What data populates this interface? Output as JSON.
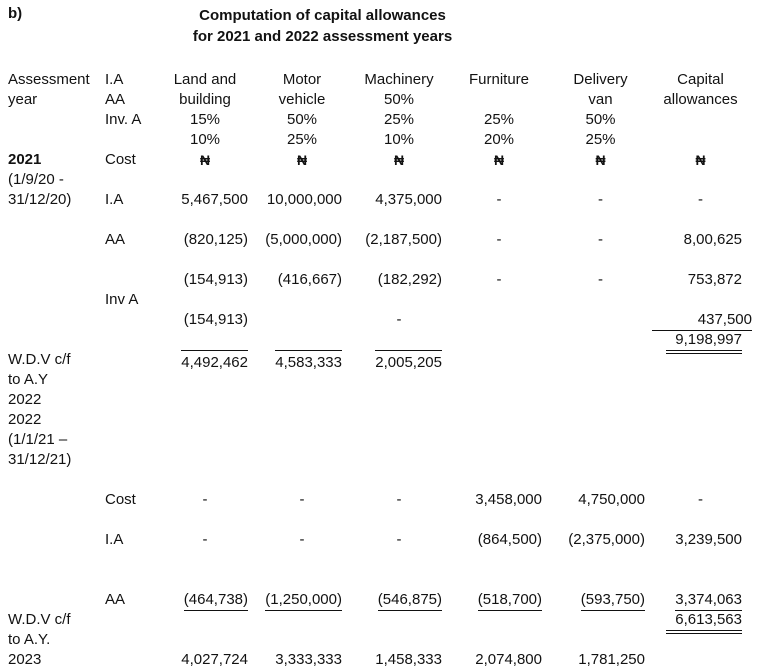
{
  "doc": {
    "item_label": "b)",
    "title": [
      "Computation of capital allowances",
      "for 2021 and 2022 assessment years"
    ],
    "currency": "₦"
  },
  "header": {
    "assessment": [
      "Assessment",
      "year"
    ],
    "rates": [
      "I.A",
      "AA",
      "Inv. A"
    ],
    "land": [
      "Land and",
      "building",
      "15%",
      "10%"
    ],
    "motor": [
      "Motor",
      "vehicle",
      "50%",
      "25%"
    ],
    "machinery": [
      "Machinery",
      "50%",
      "25%",
      "10%"
    ],
    "furniture": [
      "Furniture",
      "25%",
      "20%"
    ],
    "delivery": [
      "Delivery",
      "van",
      "50%",
      "25%"
    ],
    "capital": [
      "Capital",
      "allowances"
    ]
  },
  "y2021": {
    "year": "2021",
    "period": [
      "(1/9/20 -",
      "31/12/20)"
    ],
    "cost_label": "Cost",
    "ia_label": "I.A",
    "aa_label": "AA",
    "inv_label": "Inv A",
    "ia": [
      "5,467,500",
      "10,000,000",
      "4,375,000",
      "-",
      "-",
      "-"
    ],
    "aa": [
      "(820,125)",
      "(5,000,000)",
      "(2,187,500)",
      "-",
      "-",
      "8,00,625"
    ],
    "aa2": [
      "(154,913)",
      "(416,667)",
      "(182,292)",
      "-",
      "-",
      "753,872"
    ],
    "inv": {
      "land": "(154,913)",
      "machinery": "-",
      "capital": "437,500"
    },
    "capital_total": "9,198,997",
    "wdv_label": [
      "W.D.V c/f",
      "to A.Y",
      "2022",
      "2022",
      "(1/1/21 –",
      "31/12/21)"
    ],
    "wdv": [
      "4,492,462",
      "4,583,333",
      "2,005,205"
    ]
  },
  "y2022": {
    "cost_label": "Cost",
    "ia_label": "I.A",
    "aa_label": "AA",
    "cost": [
      "-",
      "-",
      "-",
      "3,458,000",
      "4,750,000",
      "-"
    ],
    "ia": [
      "-",
      "-",
      "-",
      "(864,500)",
      "(2,375,000)",
      "3,239,500"
    ],
    "aa": [
      "(464,738)",
      "(1,250,000)",
      "(546,875)",
      "(518,700)",
      "(593,750)",
      "3,374,063"
    ],
    "capital_total": "6,613,563",
    "wdv_label": [
      "W.D.V c/f",
      "to A.Y.",
      "2023"
    ],
    "wdv": [
      "4,027,724",
      "3,333,333",
      "1,458,333",
      "2,074,800",
      "1,781,250"
    ]
  }
}
